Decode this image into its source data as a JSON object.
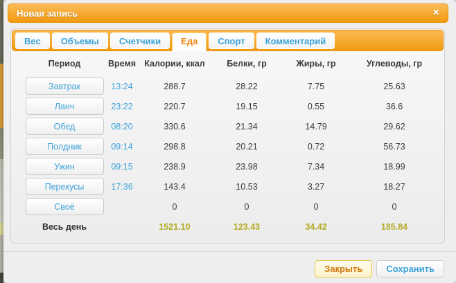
{
  "modal": {
    "title": "Новая запись",
    "close_icon": "×"
  },
  "tabs": [
    {
      "label": "Вес"
    },
    {
      "label": "Объемы"
    },
    {
      "label": "Счетчики"
    },
    {
      "label": "Еда"
    },
    {
      "label": "Спорт"
    },
    {
      "label": "Комментарий"
    }
  ],
  "active_tab": "Еда",
  "table": {
    "columns": [
      "Период",
      "Время",
      "Калории, ккал",
      "Белки, гр",
      "Жиры, гр",
      "Углеводы, гр"
    ],
    "rows": [
      {
        "period": "Завтрак",
        "time": "13:24",
        "calories": "288.7",
        "protein": "28.22",
        "fat": "7.75",
        "carbs": "25.63"
      },
      {
        "period": "Ланч",
        "time": "23:22",
        "calories": "220.7",
        "protein": "19.15",
        "fat": "0.55",
        "carbs": "36.6"
      },
      {
        "period": "Обед",
        "time": "08:20",
        "calories": "330.6",
        "protein": "21.34",
        "fat": "14.79",
        "carbs": "29.62"
      },
      {
        "period": "Полдник",
        "time": "09:14",
        "calories": "298.8",
        "protein": "20.21",
        "fat": "0.72",
        "carbs": "56.73"
      },
      {
        "period": "Ужин",
        "time": "09:15",
        "calories": "238.9",
        "protein": "23.98",
        "fat": "7.34",
        "carbs": "18.99"
      },
      {
        "period": "Перекусы",
        "time": "17:36",
        "calories": "143.4",
        "protein": "10.53",
        "fat": "3.27",
        "carbs": "18.27"
      },
      {
        "period": "Своё",
        "time": "",
        "calories": "0",
        "protein": "0",
        "fat": "0",
        "carbs": "0"
      }
    ],
    "total": {
      "label": "Весь день",
      "calories": "1521.10",
      "protein": "123.43",
      "fat": "34.42",
      "carbs": "185.84"
    }
  },
  "footer": {
    "close_label": "Закрыть",
    "save_label": "Сохранить"
  },
  "colors": {
    "accent_orange": "#f39c12",
    "link_blue": "#3da2d9",
    "active_tab_text": "#f0840a",
    "total_olive": "#b3ab27"
  }
}
